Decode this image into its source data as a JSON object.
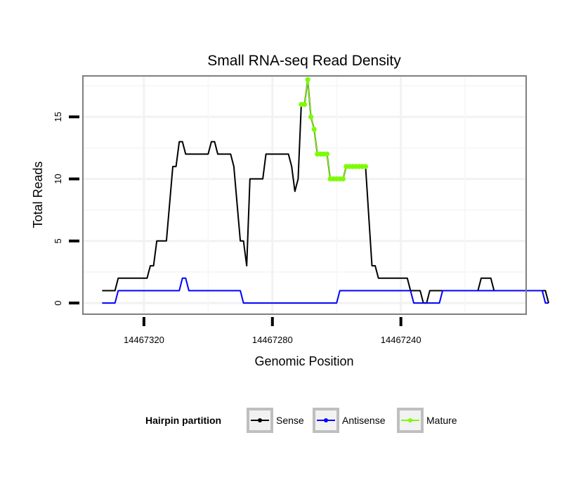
{
  "chart_data": {
    "type": "line",
    "title": "Small RNA-seq Read Density",
    "xlabel": "Genomic Position",
    "ylabel": "Total Reads",
    "xlim": [
      14467339,
      14467201
    ],
    "ylim": [
      -0.9,
      18.3
    ],
    "x_reversed": true,
    "grid": true,
    "x_ticks": [
      14467320,
      14467280,
      14467240
    ],
    "x_tick_labels": [
      "14467320",
      "14467280",
      "14467240"
    ],
    "y_ticks": [
      0,
      5,
      10,
      15
    ],
    "y_tick_labels": [
      "0",
      "5",
      "10",
      "15"
    ],
    "legend": {
      "title": "Hairpin partition",
      "position": "bottom",
      "entries": [
        "Sense",
        "Antisense",
        "Mature"
      ]
    },
    "series": [
      {
        "name": "Sense",
        "color": "#000000",
        "marker": false,
        "points": [
          [
            14467333,
            1
          ],
          [
            14467329,
            1
          ],
          [
            14467328,
            2
          ],
          [
            14467319,
            2
          ],
          [
            14467318,
            3
          ],
          [
            14467317,
            3
          ],
          [
            14467316,
            5
          ],
          [
            14467313,
            5
          ],
          [
            14467311,
            11
          ],
          [
            14467310,
            11
          ],
          [
            14467309,
            13
          ],
          [
            14467308,
            13
          ],
          [
            14467307,
            12
          ],
          [
            14467300,
            12
          ],
          [
            14467299,
            13
          ],
          [
            14467298,
            13
          ],
          [
            14467297,
            12
          ],
          [
            14467293,
            12
          ],
          [
            14467292,
            11
          ],
          [
            14467290,
            5
          ],
          [
            14467289,
            5
          ],
          [
            14467288,
            3
          ],
          [
            14467287,
            10
          ],
          [
            14467283,
            10
          ],
          [
            14467282,
            12
          ],
          [
            14467275,
            12
          ],
          [
            14467274,
            11
          ],
          [
            14467273,
            9
          ],
          [
            14467272,
            10
          ],
          [
            14467271,
            16
          ],
          [
            14467270,
            16
          ],
          [
            14467269,
            18
          ],
          [
            14467268,
            15
          ],
          [
            14467267,
            14
          ],
          [
            14467266,
            12
          ],
          [
            14467263,
            12
          ],
          [
            14467262,
            10
          ],
          [
            14467258,
            10
          ],
          [
            14467257,
            11
          ],
          [
            14467251,
            11
          ],
          [
            14467249,
            3
          ],
          [
            14467248,
            3
          ],
          [
            14467247,
            2
          ],
          [
            14467238,
            2
          ],
          [
            14467237,
            1
          ],
          [
            14467234,
            1
          ],
          [
            14467233,
            0
          ],
          [
            14467232,
            0
          ],
          [
            14467231,
            1
          ],
          [
            14467216,
            1
          ],
          [
            14467215,
            2
          ],
          [
            14467212,
            2
          ],
          [
            14467211,
            1
          ],
          [
            14467195,
            1
          ],
          [
            14467194,
            0
          ]
        ]
      },
      {
        "name": "Antisense",
        "color": "#0000ff",
        "marker": false,
        "points": [
          [
            14467333,
            0
          ],
          [
            14467329,
            0
          ],
          [
            14467328,
            1
          ],
          [
            14467309,
            1
          ],
          [
            14467308,
            2
          ],
          [
            14467307,
            2
          ],
          [
            14467306,
            1
          ],
          [
            14467290,
            1
          ],
          [
            14467289,
            0
          ],
          [
            14467260,
            0
          ],
          [
            14467259,
            1
          ],
          [
            14467237,
            1
          ],
          [
            14467236,
            0
          ],
          [
            14467228,
            0
          ],
          [
            14467227,
            1
          ],
          [
            14467196,
            1
          ],
          [
            14467195,
            0
          ],
          [
            14467194,
            0
          ]
        ]
      },
      {
        "name": "Mature",
        "color": "#7cfc00",
        "marker": true,
        "points": [
          [
            14467271,
            16
          ],
          [
            14467270,
            16
          ],
          [
            14467269,
            18
          ],
          [
            14467268,
            15
          ],
          [
            14467267,
            14
          ],
          [
            14467266,
            12
          ],
          [
            14467265,
            12
          ],
          [
            14467264,
            12
          ],
          [
            14467263,
            12
          ],
          [
            14467262,
            10
          ],
          [
            14467261,
            10
          ],
          [
            14467260,
            10
          ],
          [
            14467259,
            10
          ],
          [
            14467258,
            10
          ],
          [
            14467257,
            11
          ],
          [
            14467256,
            11
          ],
          [
            14467255,
            11
          ],
          [
            14467254,
            11
          ],
          [
            14467253,
            11
          ],
          [
            14467252,
            11
          ],
          [
            14467251,
            11
          ]
        ]
      }
    ]
  }
}
